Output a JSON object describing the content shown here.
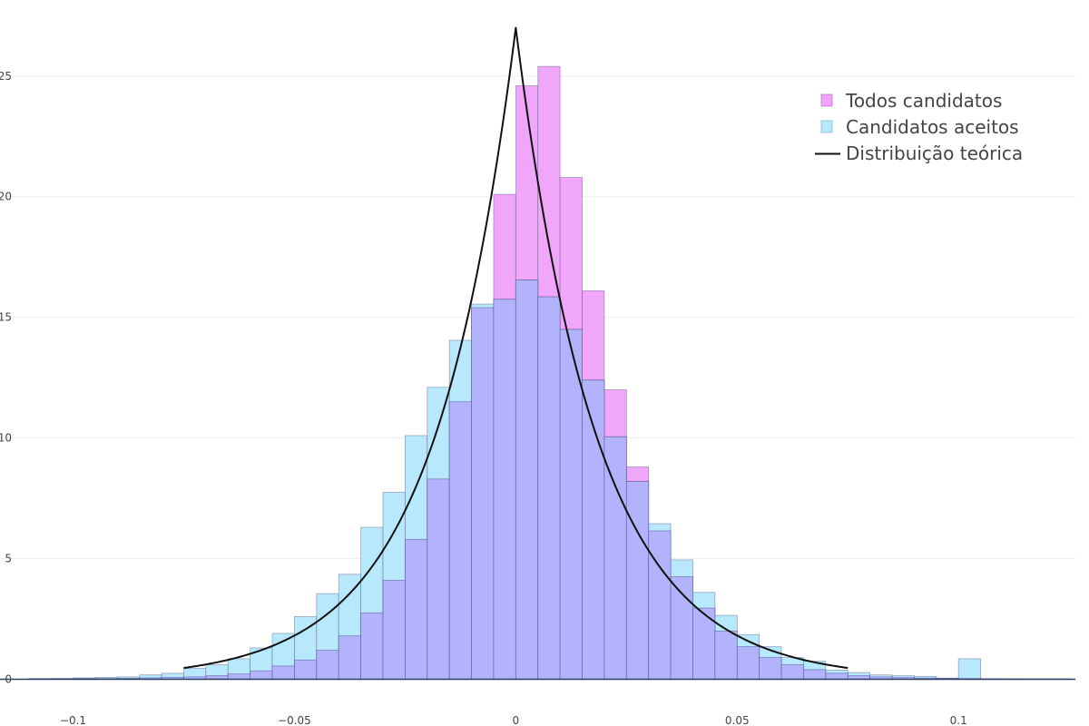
{
  "chart_data": {
    "type": "bar",
    "bin_width": 0.005,
    "bin_starts": [
      -0.11,
      -0.105,
      -0.1,
      -0.095,
      -0.09,
      -0.085,
      -0.08,
      -0.075,
      -0.07,
      -0.065,
      -0.06,
      -0.055,
      -0.05,
      -0.045,
      -0.04,
      -0.035,
      -0.03,
      -0.025,
      -0.02,
      -0.015,
      -0.01,
      -0.005,
      0,
      0.005,
      0.01,
      0.015,
      0.02,
      0.025,
      0.03,
      0.035,
      0.04,
      0.045,
      0.05,
      0.055,
      0.06,
      0.065,
      0.07,
      0.075,
      0.08,
      0.085,
      0.09,
      0.095,
      0.1,
      0.105,
      0.11,
      0.115,
      0.12
    ],
    "series": [
      {
        "name": "Todos candidatos",
        "color": "#f0a6f9",
        "values": [
          0.02,
          0.02,
          0.03,
          0.03,
          0.04,
          0.06,
          0.08,
          0.1,
          0.15,
          0.22,
          0.35,
          0.55,
          0.8,
          1.2,
          1.8,
          2.75,
          4.1,
          5.8,
          8.3,
          11.5,
          15.4,
          20.1,
          24.6,
          25.4,
          20.8,
          16.1,
          12.0,
          8.8,
          6.15,
          4.25,
          2.95,
          2.0,
          1.35,
          0.9,
          0.6,
          0.4,
          0.25,
          0.15,
          0.1,
          0.07,
          0.05,
          0.04,
          0.03,
          0.02,
          0.02,
          0.01,
          0.01
        ]
      },
      {
        "name": "Candidatos aceitos",
        "color": "#b8e8fc",
        "values": [
          0.03,
          0.04,
          0.06,
          0.08,
          0.1,
          0.18,
          0.25,
          0.45,
          0.6,
          0.85,
          1.3,
          1.9,
          2.6,
          3.55,
          4.35,
          6.3,
          7.75,
          10.1,
          12.1,
          14.05,
          15.55,
          15.75,
          16.55,
          15.85,
          14.5,
          12.4,
          10.05,
          8.2,
          6.45,
          4.95,
          3.6,
          2.65,
          1.85,
          1.35,
          0.9,
          0.75,
          0.38,
          0.28,
          0.18,
          0.15,
          0.12,
          0.05,
          0.85,
          0.02,
          0.01,
          0.01,
          0.01
        ]
      }
    ],
    "line": {
      "name": "Distribuição teórica",
      "color": "#111111",
      "x_range": [
        -0.075,
        0.075
      ],
      "peak": 27.0,
      "scale": 0.0185
    },
    "overlap_color": "#b3b3fc",
    "xlim": [
      -0.1165,
      0.1264
    ],
    "ylim": [
      0,
      27.4
    ],
    "x_ticks": [
      -0.1,
      -0.05,
      0,
      0.05,
      0.1
    ],
    "x_tick_labels": [
      "−0.1",
      "−0.05",
      "0",
      "0.05",
      "0.1"
    ],
    "y_ticks": [
      0,
      5,
      10,
      15,
      20,
      25
    ],
    "y_tick_labels": [
      "0",
      "5",
      "10",
      "15",
      "20",
      "25"
    ],
    "legend_position": "top-right",
    "grid": true
  }
}
